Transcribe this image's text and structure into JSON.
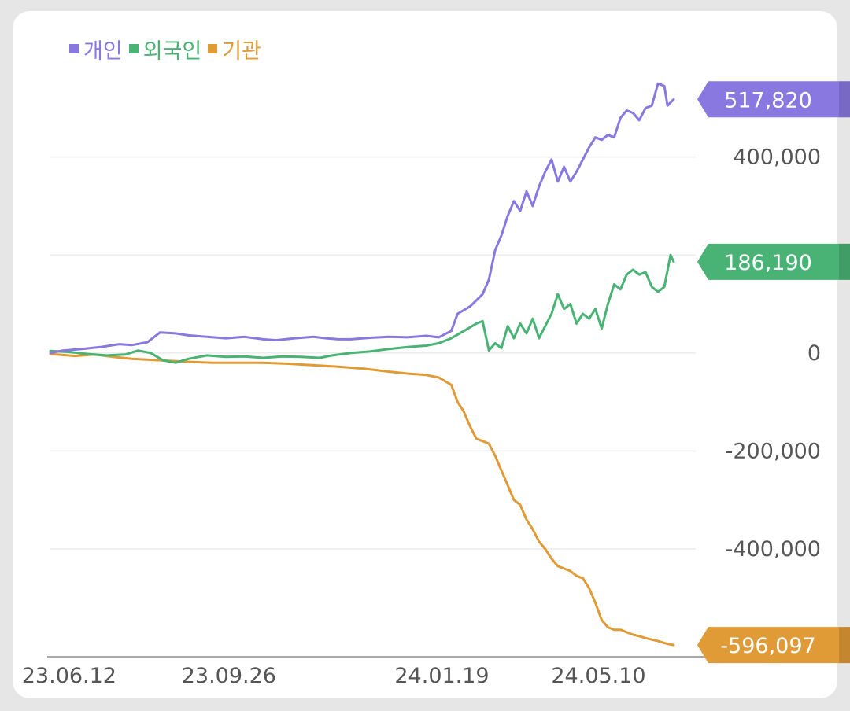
{
  "chart_data": {
    "type": "line",
    "xlabel": "",
    "ylabel": "",
    "ylim": [
      -620000,
      560000
    ],
    "yticks": [
      400000,
      0,
      -200000,
      -400000
    ],
    "ytick_labels": [
      "400,000",
      "0",
      "-200,000",
      "-400,000"
    ],
    "extra_gridlines": [
      200000
    ],
    "xtick_labels": [
      "23.06.12",
      "23.09.26",
      "24.01.19",
      "24.05.10"
    ],
    "xtick_positions": [
      0.03,
      0.285,
      0.625,
      0.875
    ],
    "legend_position": "top-left",
    "grid": true,
    "series": [
      {
        "name": "개인",
        "color": "#8878e0",
        "end_label": "517,820",
        "points": [
          [
            0,
            0
          ],
          [
            0.02,
            5000
          ],
          [
            0.05,
            8000
          ],
          [
            0.08,
            12000
          ],
          [
            0.11,
            18000
          ],
          [
            0.13,
            16000
          ],
          [
            0.155,
            22000
          ],
          [
            0.175,
            42000
          ],
          [
            0.2,
            40000
          ],
          [
            0.22,
            36000
          ],
          [
            0.25,
            33000
          ],
          [
            0.28,
            30000
          ],
          [
            0.31,
            33000
          ],
          [
            0.34,
            28000
          ],
          [
            0.36,
            26000
          ],
          [
            0.39,
            30000
          ],
          [
            0.42,
            33000
          ],
          [
            0.44,
            30000
          ],
          [
            0.46,
            28000
          ],
          [
            0.48,
            28000
          ],
          [
            0.51,
            31000
          ],
          [
            0.54,
            33000
          ],
          [
            0.57,
            32000
          ],
          [
            0.6,
            35000
          ],
          [
            0.62,
            32000
          ],
          [
            0.64,
            45000
          ],
          [
            0.65,
            80000
          ],
          [
            0.67,
            95000
          ],
          [
            0.69,
            120000
          ],
          [
            0.7,
            150000
          ],
          [
            0.71,
            210000
          ],
          [
            0.72,
            240000
          ],
          [
            0.73,
            280000
          ],
          [
            0.74,
            310000
          ],
          [
            0.75,
            290000
          ],
          [
            0.76,
            330000
          ],
          [
            0.77,
            300000
          ],
          [
            0.78,
            340000
          ],
          [
            0.79,
            370000
          ],
          [
            0.8,
            395000
          ],
          [
            0.81,
            350000
          ],
          [
            0.82,
            380000
          ],
          [
            0.83,
            350000
          ],
          [
            0.84,
            370000
          ],
          [
            0.85,
            395000
          ],
          [
            0.86,
            420000
          ],
          [
            0.87,
            440000
          ],
          [
            0.88,
            435000
          ],
          [
            0.89,
            445000
          ],
          [
            0.9,
            440000
          ],
          [
            0.91,
            480000
          ],
          [
            0.92,
            495000
          ],
          [
            0.93,
            490000
          ],
          [
            0.94,
            475000
          ],
          [
            0.95,
            500000
          ],
          [
            0.96,
            505000
          ],
          [
            0.97,
            550000
          ],
          [
            0.98,
            545000
          ],
          [
            0.985,
            505000
          ],
          [
            0.995,
            517820
          ]
        ]
      },
      {
        "name": "외국인",
        "color": "#48b374",
        "end_label": "186,190",
        "points": [
          [
            0,
            4000
          ],
          [
            0.03,
            2000
          ],
          [
            0.06,
            -2000
          ],
          [
            0.09,
            -5000
          ],
          [
            0.12,
            -3000
          ],
          [
            0.14,
            5000
          ],
          [
            0.16,
            0
          ],
          [
            0.18,
            -15000
          ],
          [
            0.2,
            -20000
          ],
          [
            0.22,
            -12000
          ],
          [
            0.25,
            -5000
          ],
          [
            0.28,
            -8000
          ],
          [
            0.31,
            -7000
          ],
          [
            0.34,
            -10000
          ],
          [
            0.37,
            -7000
          ],
          [
            0.4,
            -8000
          ],
          [
            0.43,
            -10000
          ],
          [
            0.45,
            -5000
          ],
          [
            0.48,
            0
          ],
          [
            0.51,
            3000
          ],
          [
            0.54,
            8000
          ],
          [
            0.57,
            12000
          ],
          [
            0.6,
            15000
          ],
          [
            0.62,
            20000
          ],
          [
            0.64,
            30000
          ],
          [
            0.66,
            45000
          ],
          [
            0.68,
            60000
          ],
          [
            0.69,
            65000
          ],
          [
            0.7,
            5000
          ],
          [
            0.71,
            20000
          ],
          [
            0.72,
            10000
          ],
          [
            0.73,
            55000
          ],
          [
            0.74,
            30000
          ],
          [
            0.75,
            60000
          ],
          [
            0.76,
            40000
          ],
          [
            0.77,
            70000
          ],
          [
            0.78,
            30000
          ],
          [
            0.79,
            55000
          ],
          [
            0.8,
            80000
          ],
          [
            0.81,
            120000
          ],
          [
            0.82,
            90000
          ],
          [
            0.83,
            100000
          ],
          [
            0.84,
            60000
          ],
          [
            0.85,
            80000
          ],
          [
            0.86,
            70000
          ],
          [
            0.87,
            90000
          ],
          [
            0.88,
            50000
          ],
          [
            0.89,
            100000
          ],
          [
            0.9,
            140000
          ],
          [
            0.91,
            130000
          ],
          [
            0.92,
            160000
          ],
          [
            0.93,
            170000
          ],
          [
            0.94,
            160000
          ],
          [
            0.95,
            165000
          ],
          [
            0.96,
            135000
          ],
          [
            0.97,
            125000
          ],
          [
            0.98,
            135000
          ],
          [
            0.99,
            200000
          ],
          [
            0.995,
            186190
          ]
        ]
      },
      {
        "name": "기관",
        "color": "#e09a36",
        "end_label": "-596,097",
        "points": [
          [
            0,
            -2000
          ],
          [
            0.04,
            -6000
          ],
          [
            0.07,
            -3000
          ],
          [
            0.1,
            -8000
          ],
          [
            0.13,
            -12000
          ],
          [
            0.16,
            -14000
          ],
          [
            0.19,
            -16000
          ],
          [
            0.22,
            -18000
          ],
          [
            0.26,
            -20000
          ],
          [
            0.3,
            -20000
          ],
          [
            0.34,
            -20000
          ],
          [
            0.38,
            -22000
          ],
          [
            0.42,
            -25000
          ],
          [
            0.46,
            -28000
          ],
          [
            0.5,
            -32000
          ],
          [
            0.54,
            -38000
          ],
          [
            0.57,
            -42000
          ],
          [
            0.6,
            -45000
          ],
          [
            0.62,
            -50000
          ],
          [
            0.64,
            -65000
          ],
          [
            0.65,
            -100000
          ],
          [
            0.66,
            -120000
          ],
          [
            0.67,
            -150000
          ],
          [
            0.68,
            -175000
          ],
          [
            0.69,
            -180000
          ],
          [
            0.7,
            -185000
          ],
          [
            0.71,
            -210000
          ],
          [
            0.72,
            -240000
          ],
          [
            0.73,
            -270000
          ],
          [
            0.74,
            -300000
          ],
          [
            0.75,
            -310000
          ],
          [
            0.76,
            -340000
          ],
          [
            0.77,
            -360000
          ],
          [
            0.78,
            -385000
          ],
          [
            0.79,
            -400000
          ],
          [
            0.8,
            -420000
          ],
          [
            0.81,
            -435000
          ],
          [
            0.82,
            -440000
          ],
          [
            0.83,
            -445000
          ],
          [
            0.84,
            -455000
          ],
          [
            0.85,
            -460000
          ],
          [
            0.86,
            -480000
          ],
          [
            0.87,
            -510000
          ],
          [
            0.88,
            -545000
          ],
          [
            0.89,
            -560000
          ],
          [
            0.9,
            -565000
          ],
          [
            0.91,
            -565000
          ],
          [
            0.92,
            -570000
          ],
          [
            0.93,
            -575000
          ],
          [
            0.94,
            -578000
          ],
          [
            0.95,
            -582000
          ],
          [
            0.96,
            -585000
          ],
          [
            0.97,
            -588000
          ],
          [
            0.98,
            -592000
          ],
          [
            0.99,
            -595000
          ],
          [
            0.995,
            -596097
          ]
        ]
      }
    ]
  }
}
